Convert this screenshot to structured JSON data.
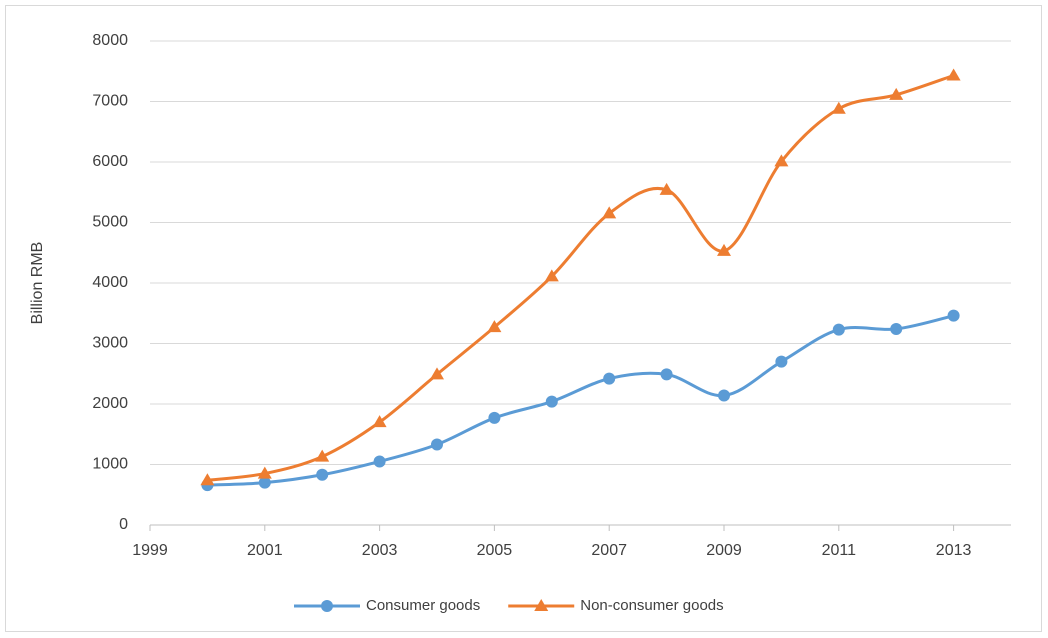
{
  "chart_data": {
    "type": "line",
    "y_label": "Billion RMB",
    "x": [
      2000,
      2001,
      2002,
      2003,
      2004,
      2005,
      2006,
      2007,
      2008,
      2009,
      2010,
      2011,
      2012,
      2013
    ],
    "series": [
      {
        "name": "Consumer goods",
        "color": "#5b9bd5",
        "marker": "circle",
        "values": [
          660,
          700,
          830,
          1050,
          1330,
          1770,
          2040,
          2420,
          2490,
          2140,
          2700,
          3230,
          3240,
          3460
        ]
      },
      {
        "name": "Non-consumer goods",
        "color": "#ed7d31",
        "marker": "triangle",
        "values": [
          740,
          850,
          1130,
          1700,
          2490,
          3270,
          4110,
          5150,
          5540,
          4530,
          6010,
          6880,
          7110,
          7430
        ]
      }
    ],
    "xlim": [
      1999,
      2014
    ],
    "xticks": [
      1999,
      2001,
      2003,
      2005,
      2007,
      2009,
      2011,
      2013
    ],
    "ylim": [
      0,
      8000
    ],
    "yticks": [
      0,
      1000,
      2000,
      3000,
      4000,
      5000,
      6000,
      7000,
      8000
    ],
    "grid": true,
    "smooth": true,
    "legend": "bottom"
  }
}
